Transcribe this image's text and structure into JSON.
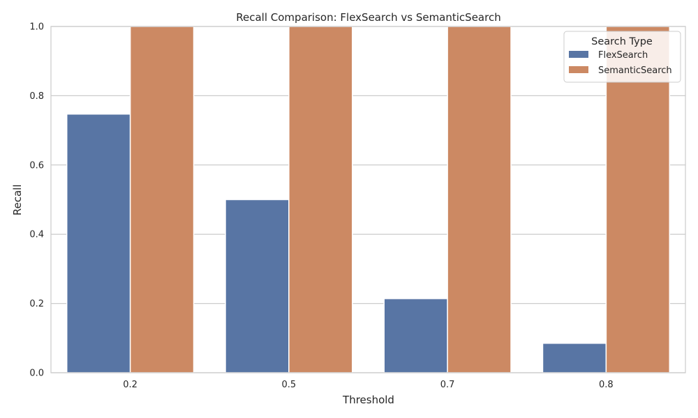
{
  "chart_data": {
    "type": "bar",
    "title": "Recall Comparison: FlexSearch vs SemanticSearch",
    "xlabel": "Threshold",
    "ylabel": "Recall",
    "categories": [
      "0.2",
      "0.5",
      "0.7",
      "0.8"
    ],
    "series": [
      {
        "name": "FlexSearch",
        "values": [
          0.747,
          0.5,
          0.214,
          0.085
        ],
        "color": "#5875a4"
      },
      {
        "name": "SemanticSearch",
        "values": [
          1.0,
          1.0,
          1.0,
          1.0
        ],
        "color": "#cc8963"
      }
    ],
    "ylim": [
      0,
      1.0
    ],
    "yticks": [
      "0.0",
      "0.2",
      "0.4",
      "0.6",
      "0.8",
      "1.0"
    ],
    "ytick_values": [
      0,
      0.2,
      0.4,
      0.6,
      0.8,
      1.0
    ],
    "grid": true,
    "legend": {
      "title": "Search Type",
      "position": "top-right"
    }
  }
}
